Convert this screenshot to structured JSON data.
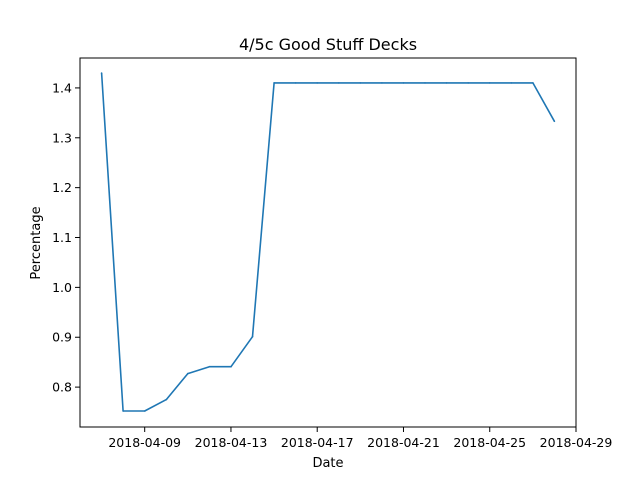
{
  "chart_data": {
    "type": "line",
    "title": "4/5c Good Stuff Decks",
    "xlabel": "Date",
    "ylabel": "Percentage",
    "x_ticks": [
      "2018-04-09",
      "2018-04-13",
      "2018-04-17",
      "2018-04-21",
      "2018-04-25",
      "2018-04-29"
    ],
    "y_ticks": [
      "0.8",
      "0.9",
      "1.0",
      "1.1",
      "1.2",
      "1.3",
      "1.4"
    ],
    "xlim": [
      "2018-04-06",
      "2018-04-29"
    ],
    "ylim": [
      0.72,
      1.46
    ],
    "grid": false,
    "series": [
      {
        "color": "#1f77b4",
        "points": [
          {
            "x": "2018-04-07",
            "y": 1.43
          },
          {
            "x": "2018-04-08",
            "y": 0.752
          },
          {
            "x": "2018-04-09",
            "y": 0.752
          },
          {
            "x": "2018-04-10",
            "y": 0.775
          },
          {
            "x": "2018-04-11",
            "y": 0.827
          },
          {
            "x": "2018-04-12",
            "y": 0.841
          },
          {
            "x": "2018-04-13",
            "y": 0.841
          },
          {
            "x": "2018-04-14",
            "y": 0.901
          },
          {
            "x": "2018-04-15",
            "y": 1.41
          },
          {
            "x": "2018-04-16",
            "y": 1.41
          },
          {
            "x": "2018-04-17",
            "y": 1.41
          },
          {
            "x": "2018-04-18",
            "y": 1.41
          },
          {
            "x": "2018-04-19",
            "y": 1.41
          },
          {
            "x": "2018-04-20",
            "y": 1.41
          },
          {
            "x": "2018-04-21",
            "y": 1.41
          },
          {
            "x": "2018-04-22",
            "y": 1.41
          },
          {
            "x": "2018-04-23",
            "y": 1.41
          },
          {
            "x": "2018-04-24",
            "y": 1.41
          },
          {
            "x": "2018-04-25",
            "y": 1.41
          },
          {
            "x": "2018-04-26",
            "y": 1.41
          },
          {
            "x": "2018-04-27",
            "y": 1.41
          },
          {
            "x": "2018-04-28",
            "y": 1.333
          }
        ]
      }
    ]
  }
}
